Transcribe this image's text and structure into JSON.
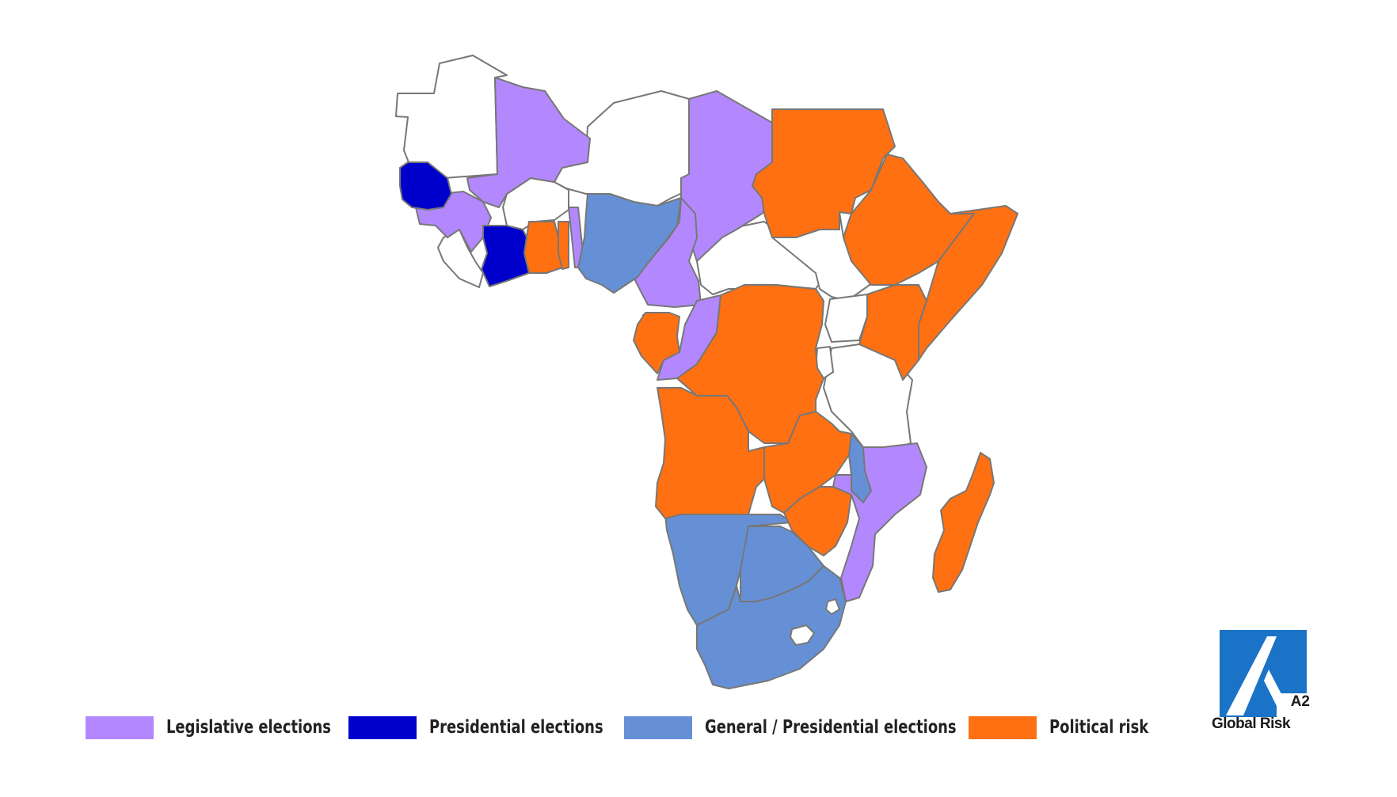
{
  "colors": {
    "legislative": "#b388ff",
    "presidential": "#0000cc",
    "general": "#6690d6",
    "political_risk": "#ff7012",
    "none": "#ffffff",
    "border": "#777777",
    "logo_blue": "#1a73c7"
  },
  "legend": {
    "legislative_label": "Legislative elections",
    "presidential_label": "Presidential elections",
    "general_label": "General / Presidential elections",
    "political_risk_label": "Political risk"
  },
  "logo": {
    "mark": "A2",
    "name": "Global Risk"
  }
}
